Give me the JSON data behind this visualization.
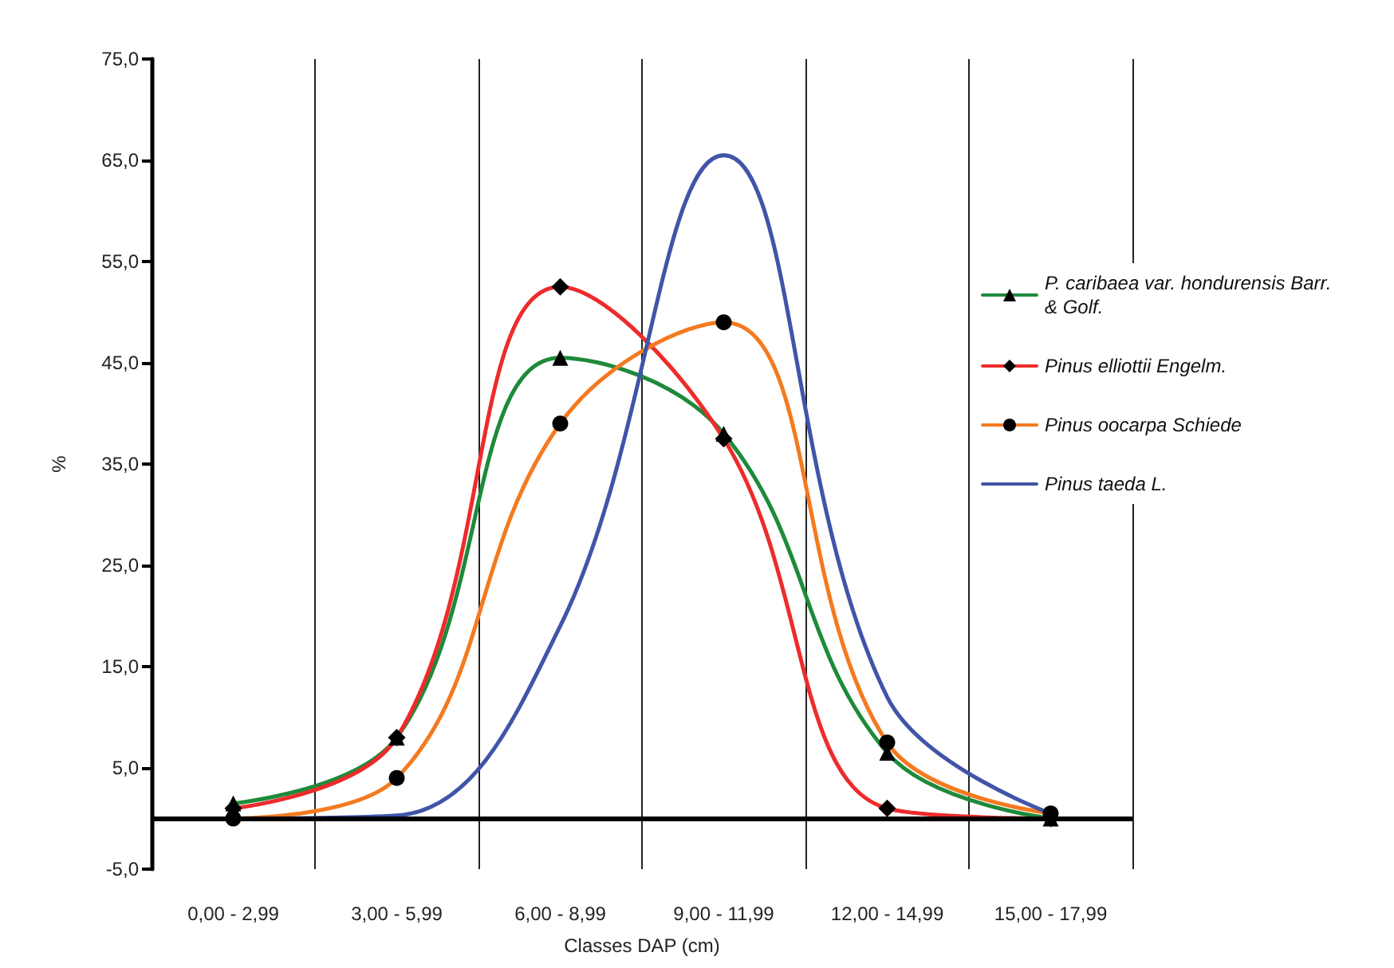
{
  "chart_data": {
    "type": "line",
    "xlabel": "Classes DAP (cm)",
    "ylabel": "%",
    "categories": [
      "0,00 - 2,99",
      "3,00 - 5,99",
      "6,00 - 8,99",
      "9,00 - 11,99",
      "12,00 - 14,99",
      "15,00 - 17,99"
    ],
    "series": [
      {
        "name": "P. caribaea var. hondurensis Barr. & Golf.",
        "color": "#1e8a3a",
        "marker": "triangle",
        "values": [
          1.5,
          8,
          45.5,
          38,
          6.5,
          0
        ]
      },
      {
        "name": "Pinus elliottii Engelm.",
        "color": "#ee2b2b",
        "marker": "diamond",
        "values": [
          1,
          8,
          52.5,
          37.5,
          1,
          0
        ]
      },
      {
        "name": "Pinus oocarpa Schiede",
        "color": "#f47a20",
        "marker": "circle",
        "values": [
          0,
          4,
          39,
          49,
          7.5,
          0.5
        ]
      },
      {
        "name": "Pinus taeda L.",
        "color": "#4055a8",
        "marker": "none",
        "values": [
          0,
          0.3,
          19,
          65.5,
          12,
          0.5
        ]
      }
    ],
    "ylim": [
      -5,
      75
    ],
    "yticks": [
      {
        "value": -5,
        "label": "-5,0"
      },
      {
        "value": 5,
        "label": "5,0"
      },
      {
        "value": 15,
        "label": "15,0"
      },
      {
        "value": 25,
        "label": "25,0"
      },
      {
        "value": 35,
        "label": "35,0"
      },
      {
        "value": 45,
        "label": "45,0"
      },
      {
        "value": 55,
        "label": "55,0"
      },
      {
        "value": 65,
        "label": "65,0"
      },
      {
        "value": 75,
        "label": "75,0"
      }
    ],
    "ref_lines": [
      {
        "axis": "y",
        "value": 0,
        "color": "#000000"
      }
    ],
    "grid": "x",
    "legend": "right"
  }
}
